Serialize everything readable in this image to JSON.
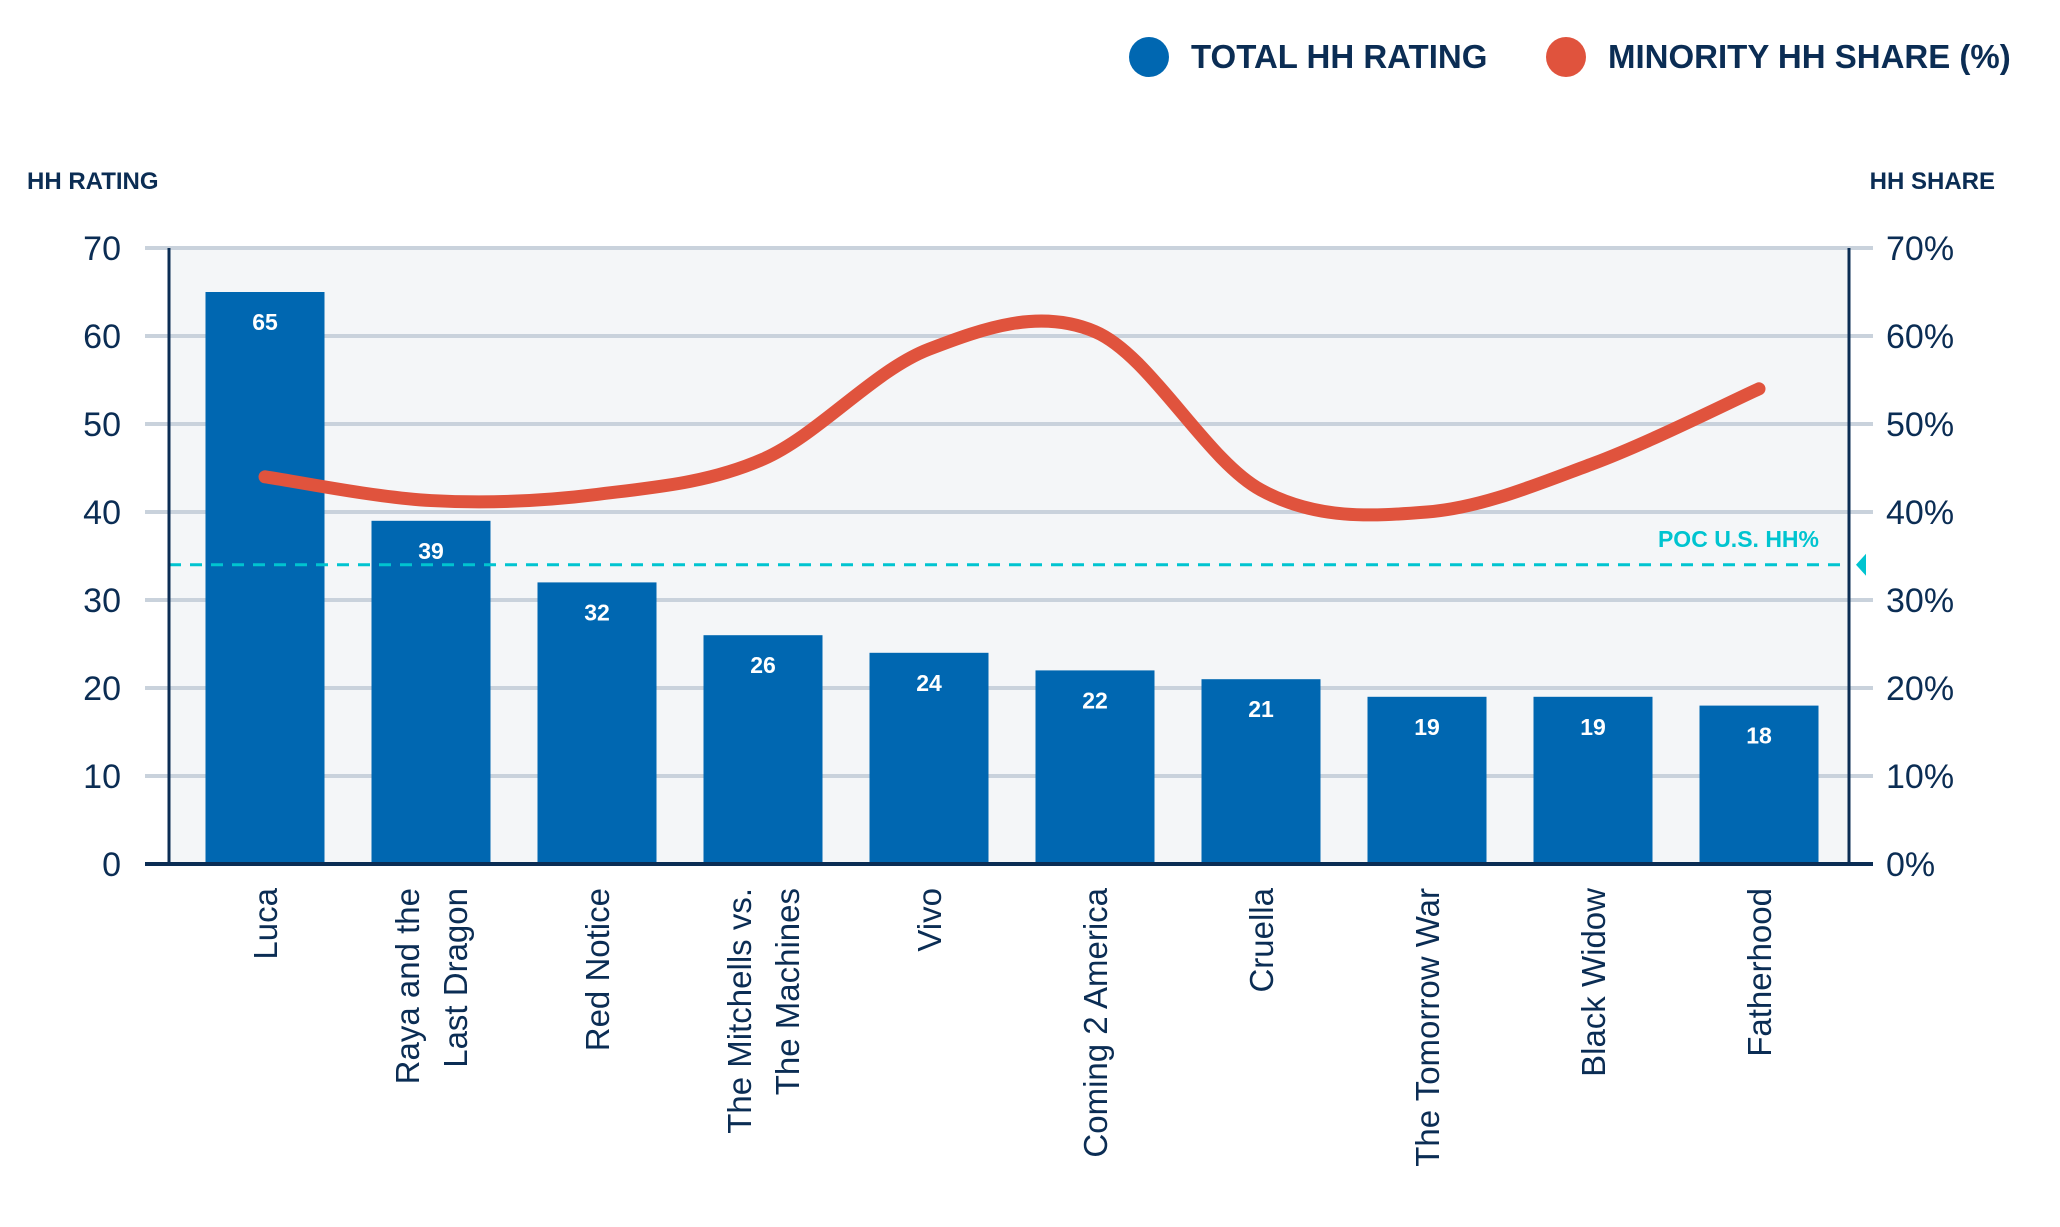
{
  "chart_data": {
    "type": "bar",
    "categories": [
      [
        "Luca"
      ],
      [
        "Raya and the",
        "Last Dragon"
      ],
      [
        "Red Notice"
      ],
      [
        "The Mitchells vs.",
        "The Machines"
      ],
      [
        "Vivo"
      ],
      [
        "Coming 2 America"
      ],
      [
        "Cruella"
      ],
      [
        "The Tomorrow War"
      ],
      [
        "Black Widow"
      ],
      [
        "Fatherhood"
      ]
    ],
    "series": [
      {
        "name": "TOTAL HH RATING",
        "type": "bar",
        "axis": "left",
        "color": "#0067B1",
        "values": [
          65,
          39,
          32,
          26,
          24,
          22,
          21,
          19,
          19,
          18
        ]
      },
      {
        "name": "MINORITY HH SHARE (%)",
        "type": "line",
        "axis": "right",
        "color": "#E0533D",
        "values": [
          44,
          41.3,
          42,
          46,
          58.5,
          60.5,
          42.5,
          40,
          45.5,
          54
        ]
      }
    ],
    "reference_line": {
      "label": "POC U.S. HH%",
      "value": 34,
      "axis": "right",
      "color": "#00C4D0"
    },
    "ylabel": "HH RATING",
    "ylabel_right": "HH SHARE",
    "ylim": [
      0,
      70
    ],
    "ylim_right": [
      0,
      70
    ],
    "yticks": [
      "0",
      "10",
      "20",
      "30",
      "40",
      "50",
      "60",
      "70"
    ],
    "yticks_right": [
      "0%",
      "10%",
      "20%",
      "30%",
      "40%",
      "50%",
      "60%",
      "70%"
    ],
    "grid": true,
    "legend_position": "top-right",
    "colors": {
      "axis": "#0B2D54",
      "grid": "#C9D2DC",
      "plot_bg": "#F4F6F8"
    }
  }
}
